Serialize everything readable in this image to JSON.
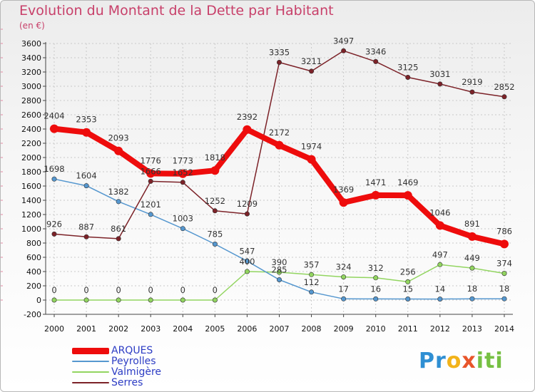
{
  "chart_data": {
    "type": "line",
    "title": "Evolution du Montant de la Dette par Habitant",
    "subtitle": "(en €)",
    "x": [
      "2000",
      "2001",
      "2002",
      "2003",
      "2004",
      "2005",
      "2006",
      "2007",
      "2008",
      "2009",
      "2010",
      "2011",
      "2012",
      "2013",
      "2014"
    ],
    "yticks": [
      "-200",
      "0",
      "200",
      "400",
      "600",
      "800",
      "1000",
      "1200",
      "1400",
      "1600",
      "1800",
      "2000",
      "2200",
      "2400",
      "2600",
      "2800",
      "3000",
      "3200",
      "3400",
      "3600"
    ],
    "ylim": [
      -200,
      3600
    ],
    "grid": true,
    "legend_position": "bottom-left",
    "series": [
      {
        "name": "ARQUES",
        "color": "#ee0c0c",
        "values": [
          2404,
          2353,
          2093,
          1776,
          1773,
          1818,
          2392,
          2172,
          1974,
          1369,
          1471,
          1469,
          1046,
          891,
          786
        ]
      },
      {
        "name": "Peyrolles",
        "color": "#5597cf",
        "values": [
          1698,
          1604,
          1382,
          1201,
          1003,
          785,
          547,
          285,
          112,
          17,
          16,
          15,
          14,
          18,
          18
        ]
      },
      {
        "name": "Valmigère",
        "color": "#92d560",
        "values": [
          0,
          0,
          0,
          0,
          0,
          0,
          400,
          390,
          357,
          324,
          312,
          256,
          497,
          449,
          374
        ]
      },
      {
        "name": "Serres",
        "color": "#7c2228",
        "values": [
          926,
          887,
          861,
          1666,
          1652,
          1252,
          1209,
          3335,
          3211,
          3497,
          3346,
          3125,
          3031,
          2919,
          2852
        ]
      }
    ],
    "value_labels": [
      {
        "series": 0,
        "i": 0,
        "text": "2404"
      },
      {
        "series": 0,
        "i": 1,
        "text": "2353"
      },
      {
        "series": 0,
        "i": 2,
        "text": "2093"
      },
      {
        "series": 0,
        "i": 3,
        "text": "1776"
      },
      {
        "series": 0,
        "i": 4,
        "text": "1773"
      },
      {
        "series": 0,
        "i": 5,
        "text": "1818"
      },
      {
        "series": 0,
        "i": 6,
        "text": "2392"
      },
      {
        "series": 0,
        "i": 7,
        "text": "2172"
      },
      {
        "series": 0,
        "i": 8,
        "text": "1974"
      },
      {
        "series": 0,
        "i": 9,
        "text": "1369"
      },
      {
        "series": 0,
        "i": 10,
        "text": "1471"
      },
      {
        "series": 0,
        "i": 11,
        "text": "1469"
      },
      {
        "series": 0,
        "i": 12,
        "text": "1046"
      },
      {
        "series": 0,
        "i": 13,
        "text": "891"
      },
      {
        "series": 0,
        "i": 14,
        "text": "786"
      },
      {
        "series": 1,
        "i": 0,
        "text": "1698"
      },
      {
        "series": 1,
        "i": 1,
        "text": "1604"
      },
      {
        "series": 1,
        "i": 2,
        "text": "1382"
      },
      {
        "series": 1,
        "i": 3,
        "text": "1201"
      },
      {
        "series": 1,
        "i": 4,
        "text": "1003"
      },
      {
        "series": 1,
        "i": 5,
        "text": "785"
      },
      {
        "series": 1,
        "i": 6,
        "text": "547"
      },
      {
        "series": 1,
        "i": 7,
        "text": "285"
      },
      {
        "series": 1,
        "i": 8,
        "text": "112"
      },
      {
        "series": 1,
        "i": 9,
        "text": "17"
      },
      {
        "series": 1,
        "i": 10,
        "text": "16"
      },
      {
        "series": 1,
        "i": 11,
        "text": "15"
      },
      {
        "series": 1,
        "i": 12,
        "text": "14"
      },
      {
        "series": 1,
        "i": 13,
        "text": "18"
      },
      {
        "series": 1,
        "i": 14,
        "text": "18"
      },
      {
        "series": 2,
        "i": 0,
        "text": "0"
      },
      {
        "series": 2,
        "i": 1,
        "text": "0"
      },
      {
        "series": 2,
        "i": 2,
        "text": "0"
      },
      {
        "series": 2,
        "i": 3,
        "text": "0"
      },
      {
        "series": 2,
        "i": 4,
        "text": "0"
      },
      {
        "series": 2,
        "i": 5,
        "text": "0"
      },
      {
        "series": 2,
        "i": 6,
        "text": "400"
      },
      {
        "series": 2,
        "i": 7,
        "text": "390"
      },
      {
        "series": 2,
        "i": 8,
        "text": "357"
      },
      {
        "series": 2,
        "i": 9,
        "text": "324"
      },
      {
        "series": 2,
        "i": 10,
        "text": "312"
      },
      {
        "series": 2,
        "i": 11,
        "text": "256"
      },
      {
        "series": 2,
        "i": 12,
        "text": "497"
      },
      {
        "series": 2,
        "i": 13,
        "text": "449"
      },
      {
        "series": 2,
        "i": 14,
        "text": "374"
      },
      {
        "series": 3,
        "i": 0,
        "text": "926"
      },
      {
        "series": 3,
        "i": 1,
        "text": "887"
      },
      {
        "series": 3,
        "i": 2,
        "text": "861"
      },
      {
        "series": 3,
        "i": 3,
        "text": "1666"
      },
      {
        "series": 3,
        "i": 4,
        "text": "1652"
      },
      {
        "series": 3,
        "i": 5,
        "text": "1252"
      },
      {
        "series": 3,
        "i": 6,
        "text": "1209"
      },
      {
        "series": 3,
        "i": 7,
        "text": "3335"
      },
      {
        "series": 3,
        "i": 8,
        "text": "3211"
      },
      {
        "series": 3,
        "i": 9,
        "text": "3497"
      },
      {
        "series": 3,
        "i": 10,
        "text": "3346"
      },
      {
        "series": 3,
        "i": 11,
        "text": "3125"
      },
      {
        "series": 3,
        "i": 12,
        "text": "3031"
      },
      {
        "series": 3,
        "i": 13,
        "text": "2919"
      },
      {
        "series": 3,
        "i": 14,
        "text": "2852"
      }
    ]
  },
  "legend": {
    "items": [
      "ARQUES",
      "Peyrolles",
      "Valmigère",
      "Serres"
    ]
  },
  "logo": {
    "p1": "Pr",
    "p2": "o",
    "p3": "x",
    "p4": "iti"
  }
}
